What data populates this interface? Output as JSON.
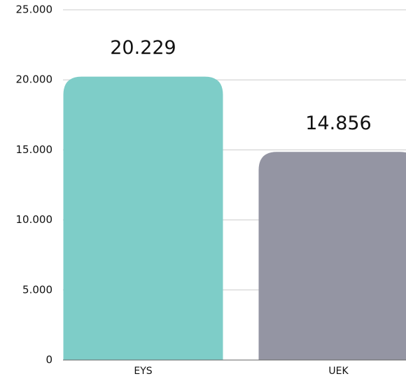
{
  "chart_data": {
    "type": "bar",
    "categories": [
      "EYS",
      "UEK"
    ],
    "values": [
      20229,
      14856
    ],
    "value_labels": [
      "20.229",
      "14.856"
    ],
    "colors": [
      "#7ecdc8",
      "#9495a3"
    ],
    "ylim": [
      0,
      25000
    ],
    "yticks": [
      0,
      {
        "value": 5000,
        "label": "5.000"
      },
      {
        "value": 10000,
        "label": "10.000"
      },
      {
        "value": 15000,
        "label": "15.000"
      },
      {
        "value": 20000,
        "label": "20.000"
      },
      {
        "value": 25000,
        "label": "25.000"
      }
    ],
    "grid": true
  }
}
